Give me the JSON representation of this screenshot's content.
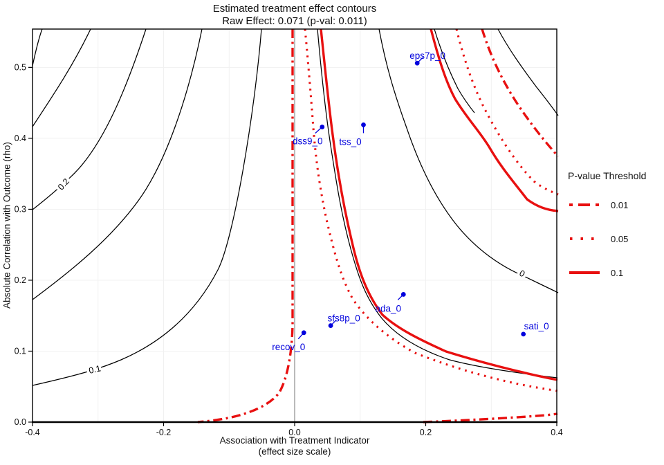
{
  "title": {
    "line1": "Estimated treatment effect contours",
    "line2": "Raw Effect: 0.071 (p-val: 0.011)"
  },
  "axes": {
    "x": {
      "label_line1": "Association with Treatment Indicator",
      "label_line2": "(effect size scale)",
      "ticks": [
        "-0.4",
        "-0.2",
        "0.0",
        "0.2",
        "0.4"
      ],
      "tick_values": [
        -0.4,
        -0.2,
        0.0,
        0.2,
        0.4
      ]
    },
    "y": {
      "label": "Absolute Correlation with Outcome (rho)",
      "ticks": [
        "0.0",
        "0.1",
        "0.2",
        "0.3",
        "0.4",
        "0.5"
      ],
      "tick_values": [
        0.0,
        0.1,
        0.2,
        0.3,
        0.4,
        0.5
      ]
    }
  },
  "legend": {
    "title": "P-value Threshold",
    "entries": [
      {
        "label": "0.01",
        "style": "dashdot"
      },
      {
        "label": "0.05",
        "style": "dotted"
      },
      {
        "label": "0.1",
        "style": "solid"
      }
    ]
  },
  "colors": {
    "contour_black": "#000000",
    "threshold_red": "#e81010",
    "point_blue": "#0202dd",
    "zero_line_gray": "#a8a8a8"
  },
  "chart_data": {
    "type": "contour",
    "title": "Estimated treatment effect contours",
    "subtitle": "Raw Effect: 0.071 (p-val: 0.011)",
    "xlabel": "Association with Treatment Indicator (effect size scale)",
    "ylabel": "Absolute Correlation with Outcome (rho)",
    "xlim": [
      -0.4,
      0.4
    ],
    "ylim": [
      0,
      0.554
    ],
    "raw_effect": 0.071,
    "p_value": 0.011,
    "black_contour_labels": [
      "0.2",
      "0.1",
      "0"
    ],
    "pvalue_thresholds": [
      0.01,
      0.05,
      0.1
    ],
    "points": [
      {
        "name": "eps7p_0",
        "x": 0.187,
        "rho": 0.506
      },
      {
        "name": "dss9_0",
        "x": 0.042,
        "rho": 0.416
      },
      {
        "name": "tss_0",
        "x": 0.105,
        "rho": 0.419
      },
      {
        "name": "ada_0",
        "x": 0.166,
        "rho": 0.18
      },
      {
        "name": "sfs8p_0",
        "x": 0.055,
        "rho": 0.136
      },
      {
        "name": "recov_0",
        "x": 0.014,
        "rho": 0.126
      },
      {
        "name": "sati_0",
        "x": 0.349,
        "rho": 0.124
      }
    ]
  }
}
